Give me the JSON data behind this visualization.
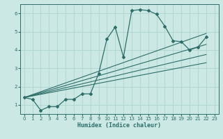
{
  "xlabel": "Humidex (Indice chaleur)",
  "bg_color": "#cce8e4",
  "line_color": "#2d6e68",
  "grid_color": "#add4cf",
  "xlim": [
    -0.5,
    23.5
  ],
  "ylim": [
    0.5,
    6.5
  ],
  "xticks": [
    0,
    1,
    2,
    3,
    4,
    5,
    6,
    7,
    8,
    9,
    10,
    11,
    12,
    13,
    14,
    15,
    16,
    17,
    18,
    19,
    20,
    21,
    22,
    23
  ],
  "yticks": [
    1,
    2,
    3,
    4,
    5,
    6
  ],
  "curve_x": [
    0,
    1,
    2,
    3,
    4,
    5,
    6,
    7,
    8,
    9,
    10,
    11,
    12,
    13,
    14,
    15,
    16,
    17,
    18,
    19,
    20,
    21,
    22
  ],
  "curve_y": [
    1.4,
    1.3,
    0.7,
    0.9,
    0.9,
    1.3,
    1.3,
    1.6,
    1.6,
    2.7,
    4.6,
    5.25,
    3.6,
    6.15,
    6.2,
    6.15,
    5.95,
    5.3,
    4.5,
    4.45,
    4.0,
    4.15,
    4.7
  ],
  "line1_x": [
    0,
    22
  ],
  "line1_y": [
    1.4,
    4.9
  ],
  "line2_x": [
    0,
    22
  ],
  "line2_y": [
    1.4,
    4.3
  ],
  "line3_x": [
    0,
    22
  ],
  "line3_y": [
    1.4,
    3.75
  ],
  "line4_x": [
    0,
    22
  ],
  "line4_y": [
    1.4,
    3.3
  ]
}
